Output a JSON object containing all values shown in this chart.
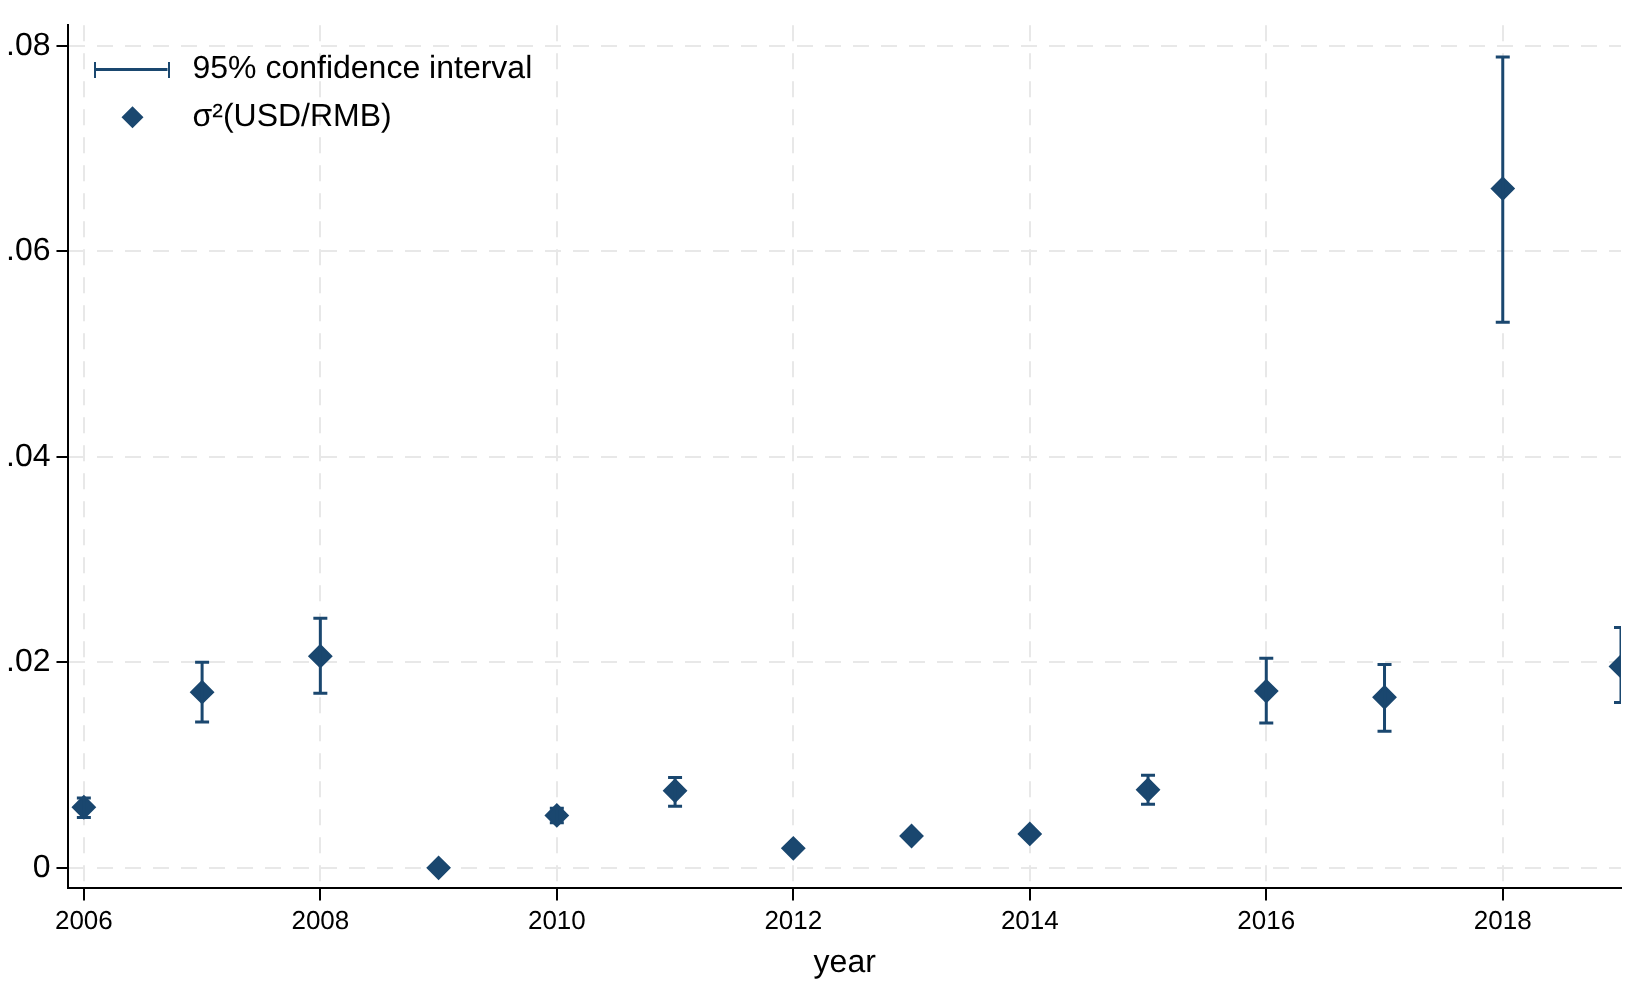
{
  "chart_data": {
    "type": "scatter",
    "xlabel": "year",
    "x": [
      2006,
      2007,
      2008,
      2009,
      2010,
      2011,
      2012,
      2013,
      2014,
      2015,
      2016,
      2017,
      2018,
      2019
    ],
    "series": [
      {
        "name": "σ²(USD/RMB)",
        "color": "#1a476f",
        "values": [
          0.0059,
          0.0171,
          0.0206,
          0.0,
          0.0051,
          0.0075,
          0.0019,
          0.0031,
          0.0033,
          0.0076,
          0.0172,
          0.0166,
          0.0661,
          0.0196
        ],
        "errors": [
          [
            0.0049,
            0.0068
          ],
          [
            0.0142,
            0.02
          ],
          [
            0.017,
            0.0243
          ],
          null,
          [
            0.0044,
            0.0058
          ],
          [
            0.006,
            0.0088
          ],
          null,
          null,
          null,
          [
            0.0062,
            0.009
          ],
          [
            0.0141,
            0.0204
          ],
          [
            0.0133,
            0.0198
          ],
          [
            0.0531,
            0.0789
          ],
          [
            0.0161,
            0.0234
          ]
        ]
      }
    ],
    "annotations": [
      "95% confidence interval"
    ],
    "marker": "diamond",
    "legend": "top left",
    "grid": true,
    "xlim": [
      2005.87,
      2019
    ],
    "xticks": [
      2006,
      2008,
      2010,
      2012,
      2014,
      2016,
      2018
    ],
    "ylim": [
      -0.002,
      0.082
    ],
    "yticks": [
      0,
      {
        "value": 0.02,
        "label": ".02"
      },
      {
        "value": 0.04,
        "label": ".04"
      },
      {
        "value": 0.06,
        "label": ".06"
      },
      {
        "value": 0.08,
        "label": ".08"
      }
    ]
  }
}
